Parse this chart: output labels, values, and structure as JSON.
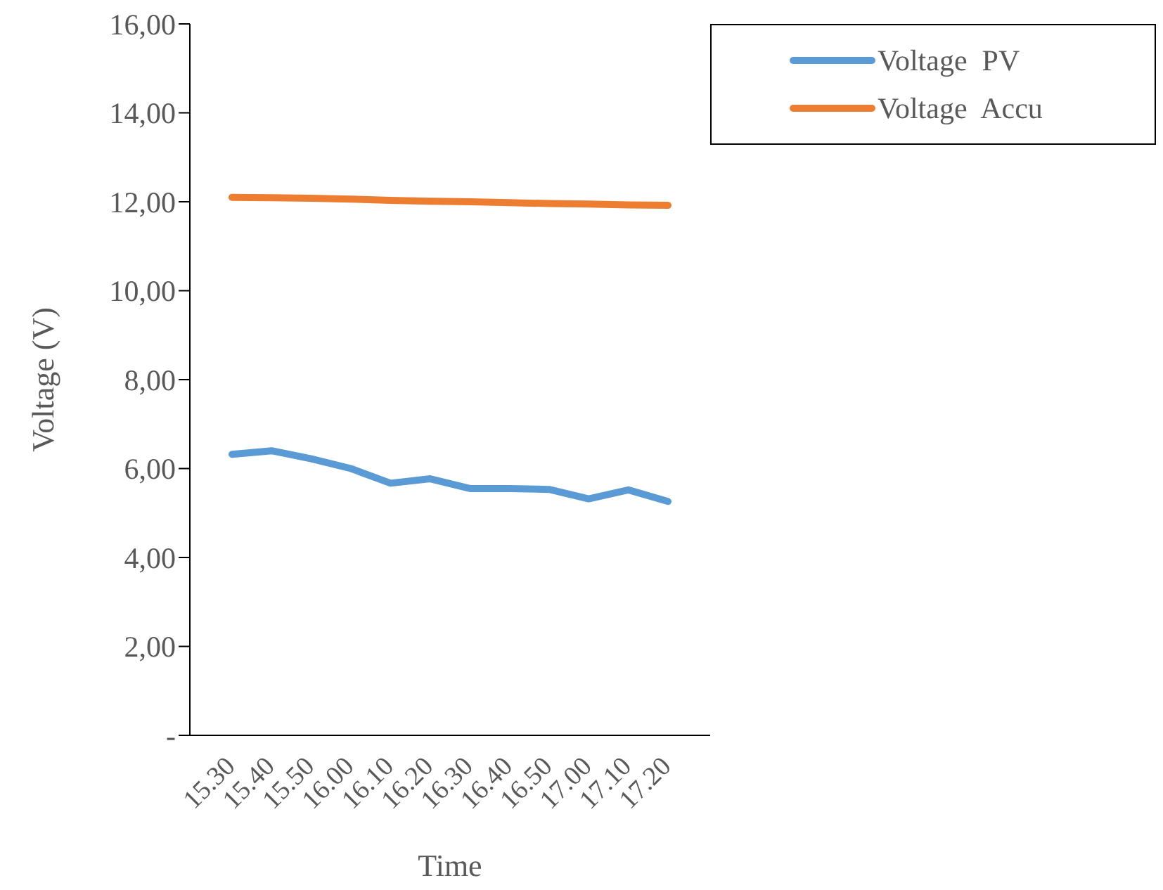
{
  "chart_data": {
    "type": "line",
    "xlabel": "Time",
    "ylabel": "Voltage (V)",
    "categories": [
      "15.30",
      "15.40",
      "15.50",
      "16.00",
      "16.10",
      "16.20",
      "16.30",
      "16.40",
      "16.50",
      "17.00",
      "17.10",
      "17.20"
    ],
    "series": [
      {
        "name": "Voltage  PV",
        "color": "#5b9bd5",
        "values": [
          6.32,
          6.4,
          6.22,
          6.0,
          5.67,
          5.77,
          5.55,
          5.55,
          5.53,
          5.32,
          5.52,
          5.26
        ]
      },
      {
        "name": "Voltage  Accu",
        "color": "#ed7d31",
        "values": [
          12.1,
          12.09,
          12.08,
          12.06,
          12.03,
          12.01,
          12.0,
          11.98,
          11.96,
          11.95,
          11.93,
          11.92
        ]
      }
    ],
    "ylim": [
      0,
      16
    ],
    "yticks": [
      {
        "value": 0,
        "label": "-"
      },
      {
        "value": 2,
        "label": "2,00"
      },
      {
        "value": 4,
        "label": "4,00"
      },
      {
        "value": 6,
        "label": "6,00"
      },
      {
        "value": 8,
        "label": "8,00"
      },
      {
        "value": 10,
        "label": "10,00"
      },
      {
        "value": 12,
        "label": "12,00"
      },
      {
        "value": 14,
        "label": "14,00"
      },
      {
        "value": 16,
        "label": "16,00"
      }
    ],
    "grid": false,
    "legend": "top right",
    "marker": "none",
    "line_style": "solid"
  }
}
